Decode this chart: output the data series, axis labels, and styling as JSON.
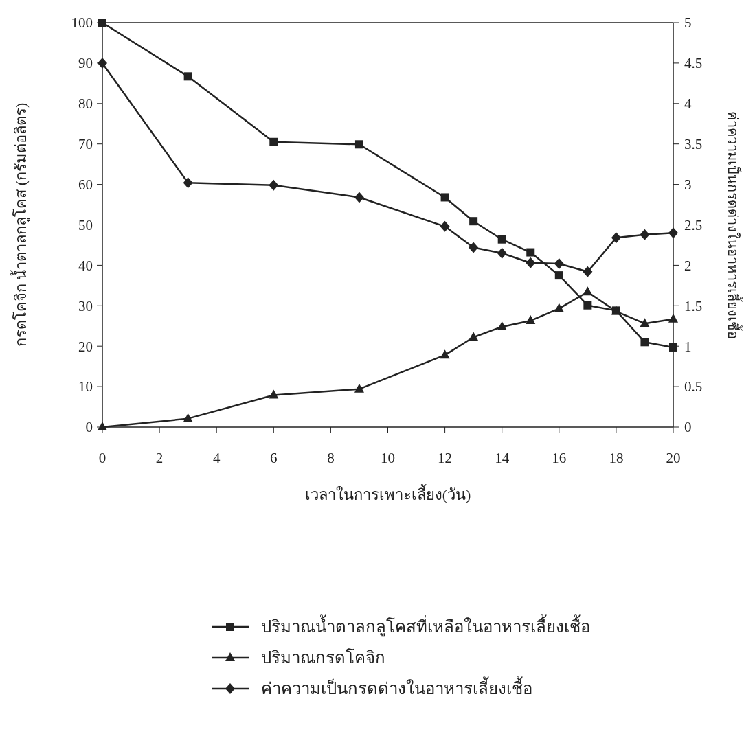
{
  "chart_data": {
    "type": "line",
    "xlabel": "เวลาในการเพาะเลี้ยง(วัน)",
    "ylabel": "กรดโคจิก น้ำตาลกลูโคส (กรัมต่อลิตร)",
    "y2label": "ค่าความเป็นกรดด่างในอาหารเลี้ยงเชื้อ",
    "x": [
      0,
      3,
      6,
      9,
      12,
      13,
      14,
      15,
      16,
      17,
      18,
      19,
      20
    ],
    "xlim": [
      0,
      20
    ],
    "xticks": [
      0,
      2,
      4,
      6,
      8,
      10,
      12,
      14,
      16,
      18,
      20
    ],
    "ylim": [
      0,
      100
    ],
    "yticks": [
      0,
      10,
      20,
      30,
      40,
      50,
      60,
      70,
      80,
      90,
      100
    ],
    "y2lim": [
      0,
      5
    ],
    "y2ticks": [
      0,
      0.5,
      1,
      1.5,
      2,
      2.5,
      3,
      3.5,
      4,
      4.5,
      5
    ],
    "grid": false,
    "legend": "bottom",
    "line_style": "solid",
    "series": [
      {
        "name": "ปริมาณน้ำตาลกลูโคสที่เหลือในอาหารเลี้ยงเชื้อ",
        "color": "#222222",
        "marker": "square",
        "values": [
          100,
          86.7,
          70.5,
          69.9,
          56.8,
          50.9,
          46.4,
          43.2,
          37.5,
          30.1,
          28.8,
          21,
          19.7
        ]
      },
      {
        "name": "ปริมาณกรดโคจิก",
        "color": "#222222",
        "marker": "triangle",
        "values": [
          0,
          2.1,
          7.9,
          9.4,
          17.8,
          22.2,
          24.8,
          26.3,
          29.3,
          33.4,
          28.6,
          25.6,
          26.7
        ]
      },
      {
        "name": "ค่าความเป็นกรดด่างในอาหารเลี้ยงเชื้อ",
        "color": "#222222",
        "marker": "diamond",
        "axis": "y2",
        "values": [
          4.5,
          3.02,
          2.99,
          2.84,
          2.48,
          2.22,
          2.15,
          2.03,
          2.02,
          1.92,
          2.34,
          2.38,
          2.4
        ]
      }
    ]
  }
}
